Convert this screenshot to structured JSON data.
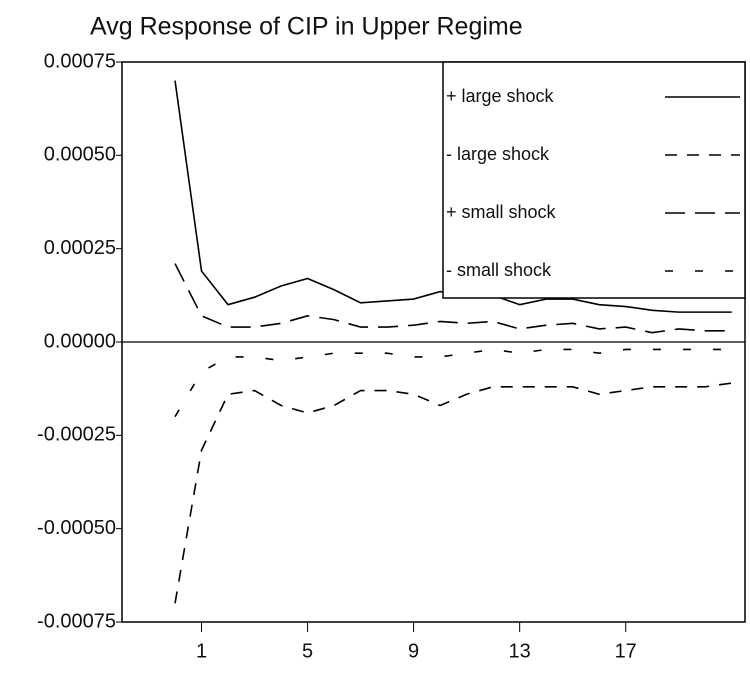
{
  "chart_data": {
    "type": "line",
    "title": "Avg Response of CIP in Upper Regime",
    "x": [
      0,
      1,
      2,
      3,
      4,
      5,
      6,
      7,
      8,
      9,
      10,
      11,
      12,
      13,
      14,
      15,
      16,
      17,
      18,
      19,
      20,
      21
    ],
    "xlim": [
      -2,
      21.5
    ],
    "xticks": [
      1,
      5,
      9,
      13,
      17
    ],
    "ylim": [
      -0.00075,
      0.00075
    ],
    "yticks": [
      {
        "value": -0.00075,
        "label": "-0.00075"
      },
      {
        "value": -0.0005,
        "label": "-0.00050"
      },
      {
        "value": -0.00025,
        "label": "-0.00025"
      },
      {
        "value": 0,
        "label": "0.00000"
      },
      {
        "value": 0.00025,
        "label": "0.00025"
      },
      {
        "value": 0.0005,
        "label": "0.00050"
      },
      {
        "value": 0.00075,
        "label": "0.00075"
      }
    ],
    "legend": "upper right",
    "series": [
      {
        "name": "+ large shock",
        "color": "#000000",
        "dash": "none",
        "values": [
          0.0007,
          0.00019,
          0.0001,
          0.00012,
          0.00015,
          0.00017,
          0.00014,
          0.000105,
          0.00011,
          0.000115,
          0.000135,
          0.000125,
          0.000125,
          0.0001,
          0.000115,
          0.000115,
          0.0001,
          9.5e-05,
          8.5e-05,
          8e-05,
          8e-05,
          8e-05
        ]
      },
      {
        "name": "- large shock",
        "color": "#000000",
        "dash": "12 10",
        "values": [
          -0.0007,
          -0.00029,
          -0.00014,
          -0.00013,
          -0.00017,
          -0.00019,
          -0.00017,
          -0.00013,
          -0.00013,
          -0.00014,
          -0.00017,
          -0.00014,
          -0.00012,
          -0.00012,
          -0.00012,
          -0.00012,
          -0.00014,
          -0.00013,
          -0.00012,
          -0.00012,
          -0.00012,
          -0.00011
        ]
      },
      {
        "name": "+ small shock",
        "color": "#000000",
        "dash": "20 10",
        "values": [
          0.00021,
          7e-05,
          4e-05,
          4e-05,
          5e-05,
          7e-05,
          6e-05,
          4e-05,
          4e-05,
          4.5e-05,
          5.5e-05,
          5e-05,
          5.5e-05,
          3.5e-05,
          4.5e-05,
          5e-05,
          3.5e-05,
          4e-05,
          2.5e-05,
          3.5e-05,
          3e-05,
          3e-05
        ]
      },
      {
        "name": "- small shock",
        "color": "#000000",
        "dash": "8 22",
        "values": [
          -0.0002,
          -8e-05,
          -4e-05,
          -4e-05,
          -5e-05,
          -4e-05,
          -3e-05,
          -3e-05,
          -3e-05,
          -4e-05,
          -4e-05,
          -3e-05,
          -2e-05,
          -3e-05,
          -2e-05,
          -2e-05,
          -3e-05,
          -2e-05,
          -2e-05,
          -2e-05,
          -2e-05,
          -2e-05
        ]
      }
    ]
  }
}
